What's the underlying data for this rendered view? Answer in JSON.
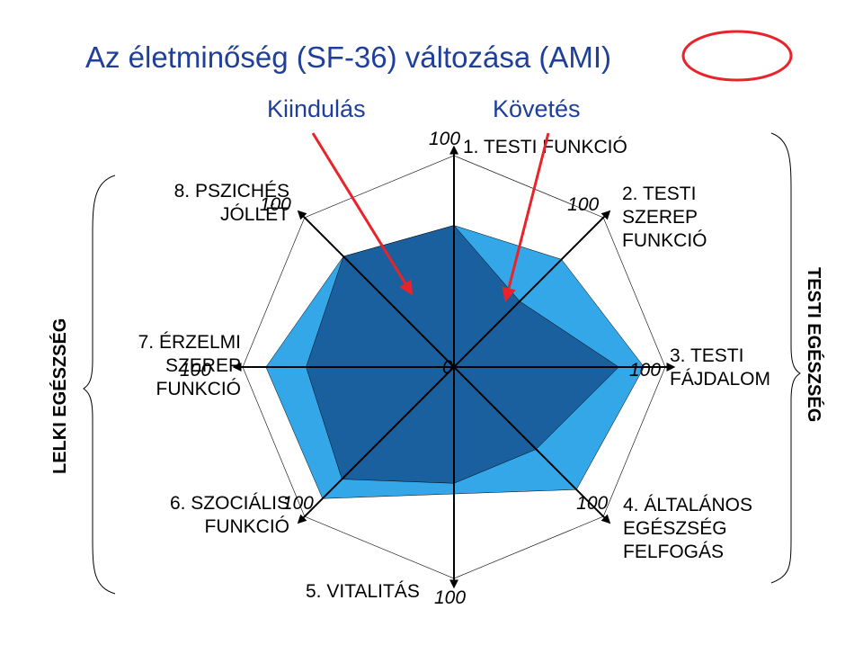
{
  "title": "Az életminőség (SF-36) változása (AMI)",
  "legend": {
    "baseline": "Kiindulás",
    "followup": "Követés"
  },
  "side_labels": {
    "left": "LELKI EGÉSZSÉG",
    "right": "TESTI EGÉSZSÉG"
  },
  "center_label": "0",
  "colors": {
    "title": "#1f3f99",
    "baseline_fill": "#1a5f9e",
    "followup_fill": "#33a7e8",
    "arrow": "#e8232a",
    "circle": "#e8232a"
  },
  "chart_data": {
    "type": "radar",
    "title": "Az életminőség (SF-36) változása (AMI)",
    "rmax": 100,
    "axes": [
      {
        "lines": [
          "1.  TESTI FUNKCIÓ"
        ],
        "tick": "100"
      },
      {
        "lines": [
          "2. TESTI",
          "SZEREP",
          "FUNKCIÓ"
        ],
        "tick": "100"
      },
      {
        "lines": [
          "3. TESTI",
          "FÁJDALOM"
        ],
        "tick": "100"
      },
      {
        "lines": [
          "4. ÁLTALÁNOS",
          "EGÉSZSÉG",
          "FELFOGÁS"
        ],
        "tick": "100"
      },
      {
        "lines": [
          "5. VITALITÁS"
        ],
        "tick": "100"
      },
      {
        "lines": [
          "6. SZOCIÁLIS",
          "FUNKCIÓ"
        ],
        "tick": "100"
      },
      {
        "lines": [
          "7. ÉRZELMI",
          "SZEREP",
          "FUNKCIÓ"
        ],
        "tick": "100"
      },
      {
        "lines": [
          "8. PSZICHÉS",
          "JÓLLÉT"
        ],
        "tick": "100"
      }
    ],
    "series": [
      {
        "name": "Kiindulás",
        "values": [
          67,
          44,
          78,
          55,
          55,
          75,
          70,
          74
        ]
      },
      {
        "name": "Követés",
        "values": [
          67,
          72,
          90,
          82,
          60,
          88,
          89,
          74
        ]
      }
    ]
  }
}
